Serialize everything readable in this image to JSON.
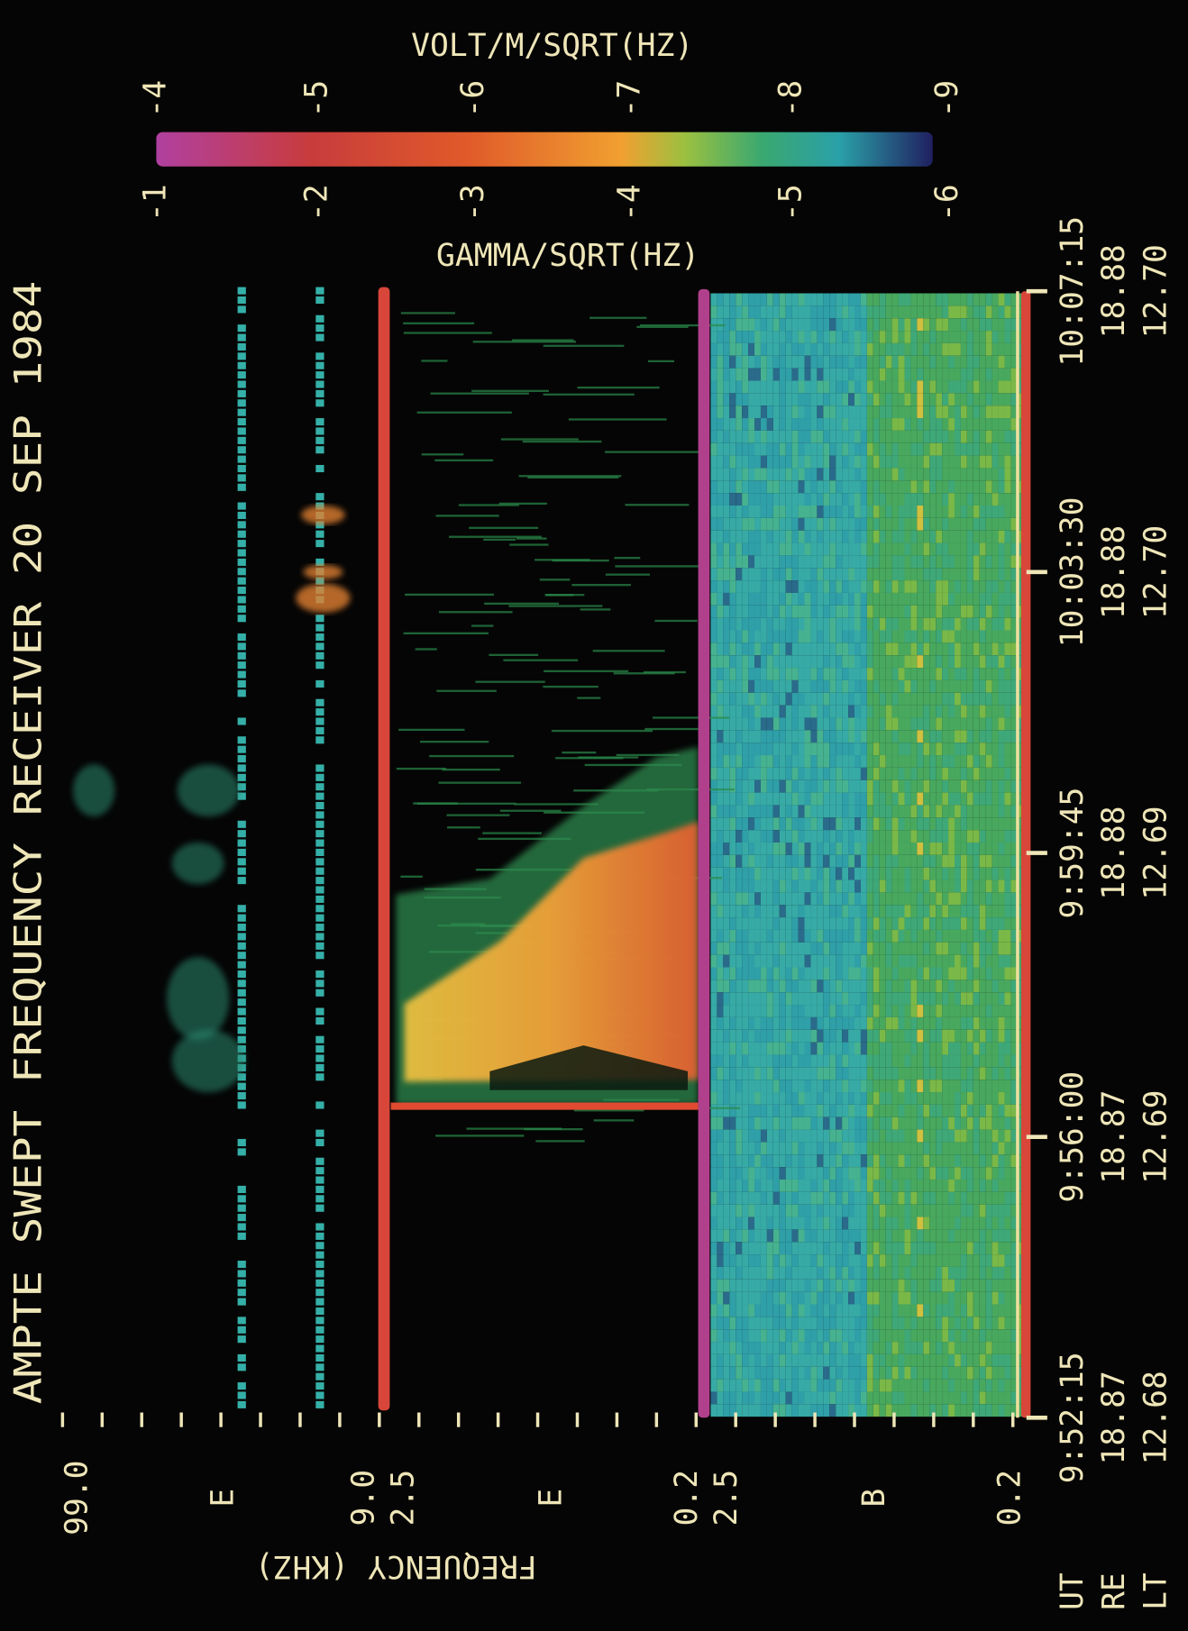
{
  "title": "AMPTE SWEPT FREQUENCY RECEIVER  20 SEP 1984",
  "colorbar": {
    "top_label": "VOLT/M/SQRT(HZ)",
    "top_ticks": [
      "-4",
      "-5",
      "-6",
      "-7",
      "-8",
      "-9"
    ],
    "bottom_label": "GAMMA/SQRT(HZ)",
    "bottom_ticks": [
      "-1",
      "-2",
      "-3",
      "-4",
      "-5",
      "-6"
    ]
  },
  "frequency_axis": {
    "label": "FREQUENCY (KHZ)",
    "panels": [
      {
        "name": "E",
        "start": "99.0",
        "end": "9.0"
      },
      {
        "name": "E",
        "start": "2.5",
        "end": "0.2"
      },
      {
        "name": "B",
        "start": "2.5",
        "end": "0.2"
      }
    ]
  },
  "time_axis": {
    "rows": [
      "UT",
      "RE",
      "LT"
    ],
    "ticks": [
      [
        "9:52:15",
        "18.87",
        "12.68"
      ],
      [
        "9:56:00",
        "18.87",
        "12.69"
      ],
      [
        "9:59:45",
        "18.88",
        "12.69"
      ],
      [
        "10:03:30",
        "18.88",
        "12.70"
      ],
      [
        "10:07:15",
        "18.88",
        "12.70"
      ]
    ]
  }
}
